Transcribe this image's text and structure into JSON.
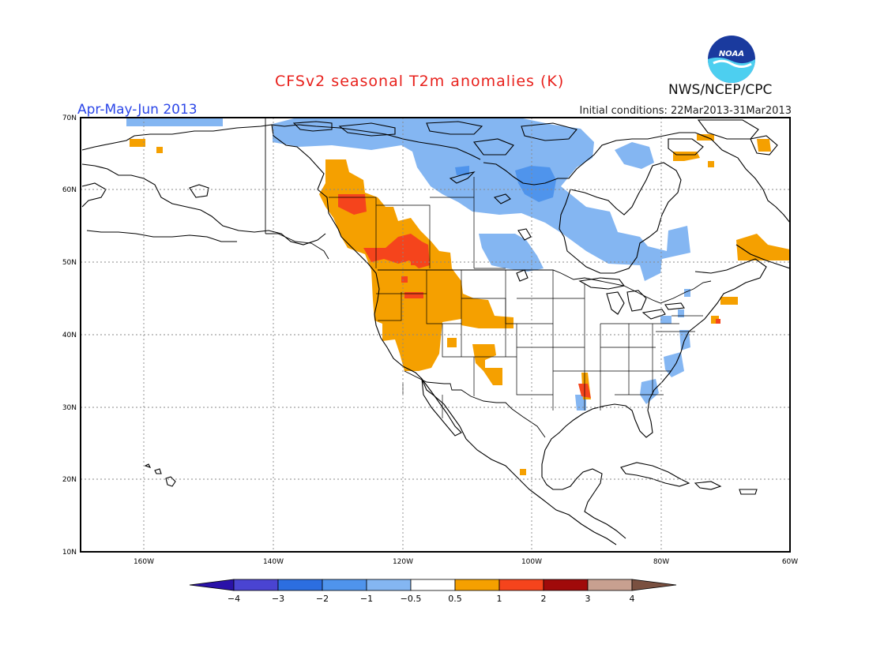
{
  "header": {
    "title": "CFSv2 seasonal T2m anomalies (K)",
    "agency": "NWS/NCEP/CPC",
    "season": "Apr-May-Jun 2013",
    "initial_conditions": "Initial conditions: 22Mar2013-31Mar2013",
    "logo_text": "NOAA"
  },
  "map": {
    "lat_labels": [
      "70N",
      "60N",
      "50N",
      "40N",
      "30N",
      "20N",
      "10N"
    ],
    "lon_labels": [
      "160W",
      "140W",
      "120W",
      "100W",
      "80W",
      "60W"
    ],
    "region": "North America",
    "anomaly_regions": [
      {
        "area": "Pacific Northwest and western Canada",
        "category": "0.5 to 1",
        "color": "#f5a000"
      },
      {
        "area": "British Columbia core",
        "category": "1 to 2",
        "color": "#f5441c"
      },
      {
        "area": "Nevada / Utah / Arizona",
        "category": "0.5 to 1",
        "color": "#f5a000"
      },
      {
        "area": "Northern Canada / Nunavut",
        "category": "-1 to -0.5",
        "color": "#84b6f2"
      },
      {
        "area": "Hudson Bay region",
        "category": "-2 to -1",
        "color": "#4f94ec"
      },
      {
        "area": "Southeast US coast",
        "category": "-1 to -0.5",
        "color": "#84b6f2"
      },
      {
        "area": "Lower Mississippi",
        "category": "1 to 2",
        "color": "#f5441c"
      },
      {
        "area": "Labrador / Quebec coast",
        "category": "0.5 to 1",
        "color": "#f5a000"
      }
    ]
  },
  "colorbar": {
    "labels": [
      "-4",
      "-3",
      "-2",
      "-1",
      "-0.5",
      "0.5",
      "1",
      "2",
      "3",
      "4"
    ],
    "colors": [
      "#2a12a8",
      "#4a44d2",
      "#2c6ee0",
      "#4f94ec",
      "#84b6f2",
      "#ffffff",
      "#f5a000",
      "#f5441c",
      "#a00a0a",
      "#c8a090",
      "#7a5040"
    ]
  }
}
